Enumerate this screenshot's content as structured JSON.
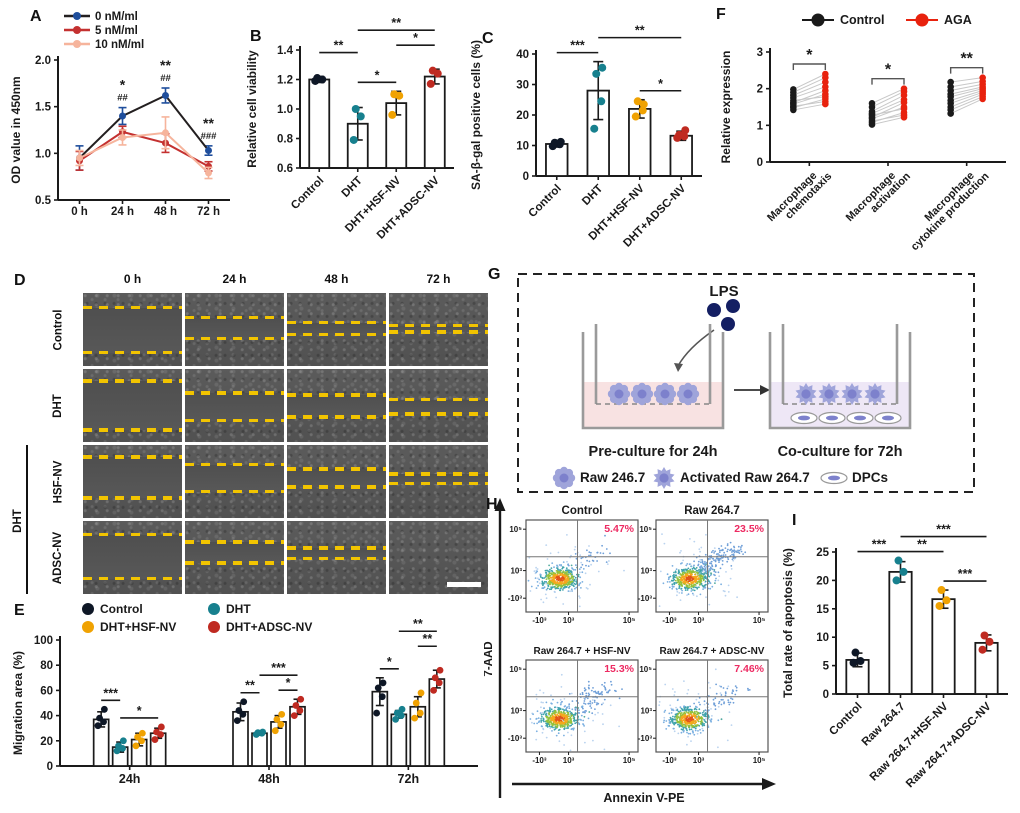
{
  "colors": {
    "control": "#0e1726",
    "dht_teal": "#17808e",
    "hsf_orange": "#f0a202",
    "adsc_red": "#bf2a21",
    "line_black": "#231f20",
    "marker_blue": "#1f4e9c",
    "red_5nm": "#c43130",
    "salmon_10nm": "#f6b49c",
    "aga_red": "#e8220e",
    "pct_pink": "#ed2a62",
    "dash_yellow": "#f2c400",
    "cell_purple": "#9fa4da",
    "cell_purple_dark": "#7d81cc",
    "lps_navy": "#141f63",
    "medium_pink": "#f8e2e2",
    "medium_purple": "#eee7f6"
  },
  "panels": {
    "A": {
      "letter": "A"
    },
    "B": {
      "letter": "B"
    },
    "C": {
      "letter": "C"
    },
    "D": {
      "letter": "D",
      "col_headers": [
        "0 h",
        "24 h",
        "48 h",
        "72 h"
      ],
      "row_labels": [
        "Control",
        "DHT",
        "HSF-NV",
        "ADSC-NV"
      ],
      "bracket_label": "DHT",
      "gaps": [
        [
          [
            20,
            82
          ],
          [
            34,
            63
          ],
          [
            41,
            57
          ],
          [
            45,
            54
          ]
        ],
        [
          [
            17,
            84
          ],
          [
            33,
            71
          ],
          [
            36,
            66
          ],
          [
            42,
            62
          ]
        ],
        [
          [
            17,
            73
          ],
          [
            27,
            64
          ],
          [
            33,
            58
          ],
          [
            40,
            53
          ]
        ],
        [
          [
            19,
            79
          ],
          [
            29,
            58
          ],
          [
            37,
            52
          ],
          null
        ]
      ],
      "scale_bar_cell": [
        3,
        3
      ]
    },
    "E": {
      "letter": "E"
    },
    "F": {
      "letter": "F"
    },
    "G": {
      "letter": "G",
      "lps_label": "LPS",
      "left_label": "Pre-culture for 24h",
      "right_label": "Co-culture for 72h",
      "legend": [
        {
          "label": "Raw 246.7",
          "icon": "raw-cell"
        },
        {
          "label": "Activated Raw 264.7",
          "icon": "activated-cell"
        },
        {
          "label": "DPCs",
          "icon": "dpc-cell"
        }
      ]
    },
    "H": {
      "letter": "H"
    },
    "I": {
      "letter": "I"
    }
  },
  "chart_data": [
    {
      "panel": "A",
      "type": "line",
      "ylabel": "OD value in 450nm",
      "ylim": [
        0.5,
        2.0
      ],
      "yticks": [
        0.5,
        1.0,
        1.5,
        2.0
      ],
      "ytick_labels": [
        "0.5",
        "1.0",
        "1.5",
        "2.0"
      ],
      "categories": [
        "0 h",
        "24 h",
        "48 h",
        "72 h"
      ],
      "series": [
        {
          "name": "0 nM/ml",
          "line_color": "#231f20",
          "marker_color": "#1f4e9c",
          "values": [
            0.95,
            1.4,
            1.62,
            1.03
          ],
          "errors": [
            0.13,
            0.09,
            0.08,
            0.05
          ]
        },
        {
          "name": "5 nM/ml",
          "line_color": "#c43130",
          "marker_color": "#c43130",
          "values": [
            0.92,
            1.23,
            1.11,
            0.86
          ],
          "errors": [
            0.1,
            0.06,
            0.1,
            0.05
          ]
        },
        {
          "name": "10 nM/ml",
          "line_color": "#f6b49c",
          "marker_color": "#f6b49c",
          "values": [
            0.95,
            1.17,
            1.22,
            0.79
          ],
          "errors": [
            0.08,
            0.08,
            0.17,
            0.06
          ]
        }
      ],
      "annotations": [
        {
          "x": 1,
          "lines": [
            "*",
            "##"
          ]
        },
        {
          "x": 2,
          "lines": [
            "**",
            "##"
          ]
        },
        {
          "x": 3,
          "lines": [
            "**",
            "###"
          ]
        }
      ]
    },
    {
      "panel": "B",
      "type": "bar",
      "ylabel": "Relative cell viability",
      "ylim": [
        0.6,
        1.4
      ],
      "yticks": [
        0.6,
        0.8,
        1.0,
        1.2,
        1.4
      ],
      "ytick_labels": [
        "0.6",
        "0.8",
        "1.0",
        "1.2",
        "1.4"
      ],
      "categories": [
        "Control",
        "DHT",
        "DHT+HSF-NV",
        "DHT+ADSC-NV"
      ],
      "values": [
        1.2,
        0.9,
        1.04,
        1.22
      ],
      "errors": [
        0.02,
        0.11,
        0.08,
        0.05
      ],
      "points": [
        [
          1.19,
          1.2,
          1.21
        ],
        [
          0.79,
          0.95,
          1.0
        ],
        [
          0.96,
          1.09,
          1.1
        ],
        [
          1.17,
          1.24,
          1.26
        ]
      ],
      "point_colors": [
        "#0e1726",
        "#17808e",
        "#f0a202",
        "#bf2a21"
      ],
      "sigs": [
        {
          "a": 0,
          "b": 1,
          "label": "**",
          "level": 1
        },
        {
          "a": 1,
          "b": 2,
          "label": "*",
          "level": 0
        },
        {
          "a": 2,
          "b": 3,
          "label": "*",
          "level": 1
        },
        {
          "a": 1,
          "b": 3,
          "label": "**",
          "level": 2
        }
      ]
    },
    {
      "panel": "C",
      "type": "bar",
      "ylabel": "SA-β-gal positive cells (%)",
      "ylim": [
        0,
        40
      ],
      "yticks": [
        0,
        10,
        20,
        30,
        40
      ],
      "ytick_labels": [
        "0",
        "10",
        "20",
        "30",
        "40"
      ],
      "categories": [
        "Control",
        "DHT",
        "DHT+HSF-NV",
        "DHT+ADSC-NV"
      ],
      "values": [
        10.5,
        28,
        22,
        13.2
      ],
      "errors": [
        1,
        9.5,
        3,
        1.5
      ],
      "points": [
        [
          9.8,
          10.4,
          10.9,
          11.2
        ],
        [
          15.5,
          24.5,
          33.5,
          35.5
        ],
        [
          19.5,
          21.5,
          24.5,
          23.5
        ],
        [
          12.5,
          13,
          13.5,
          15
        ]
      ],
      "point_colors": [
        "#0e1726",
        "#17808e",
        "#f0a202",
        "#bf2a21"
      ],
      "sigs": [
        {
          "a": 0,
          "b": 1,
          "label": "***",
          "level": 0
        },
        {
          "a": 2,
          "b": 3,
          "label": "*",
          "level": 0
        },
        {
          "a": 1,
          "b": 3,
          "label": "**",
          "level": 1
        }
      ]
    },
    {
      "panel": "E",
      "type": "grouped_bar",
      "ylabel": "Migration area (%)",
      "ylim": [
        0,
        100
      ],
      "yticks": [
        0,
        20,
        40,
        60,
        80,
        100
      ],
      "ytick_labels": [
        "0",
        "20",
        "40",
        "60",
        "80",
        "100"
      ],
      "groups": [
        "24h",
        "48h",
        "72h"
      ],
      "legend": [
        {
          "name": "Control",
          "color": "#0e1726"
        },
        {
          "name": "DHT",
          "color": "#17808e"
        },
        {
          "name": "DHT+HSF-NV",
          "color": "#f0a202"
        },
        {
          "name": "DHT+ADSC-NV",
          "color": "#bf2a21"
        }
      ],
      "values": [
        [
          37,
          15,
          21,
          26
        ],
        [
          43,
          26,
          35,
          47
        ],
        [
          59,
          41,
          47,
          69
        ]
      ],
      "errors": [
        [
          6,
          4,
          5,
          4
        ],
        [
          7,
          1.5,
          5,
          6
        ],
        [
          11,
          3,
          8,
          7
        ]
      ],
      "points": [
        [
          [
            32,
            35,
            38,
            45
          ],
          [
            12,
            14,
            16,
            20
          ],
          [
            16,
            20,
            23,
            26
          ],
          [
            21,
            25,
            27,
            31
          ]
        ],
        [
          [
            36,
            41,
            44,
            51
          ],
          [
            25,
            26,
            26.5,
            27
          ],
          [
            28,
            33,
            37,
            41
          ],
          [
            40,
            44,
            48,
            53
          ]
        ],
        [
          [
            42,
            55,
            62,
            66
          ],
          [
            37,
            40,
            42,
            45
          ],
          [
            38,
            42,
            50,
            58
          ],
          [
            60,
            66,
            70,
            76
          ]
        ]
      ],
      "sigs": [
        {
          "a": 0,
          "b": 1,
          "label": "***",
          "level": 0
        },
        {
          "a": 1,
          "b": 3,
          "label": "*",
          "level": 0
        },
        {
          "a": 4,
          "b": 5,
          "label": "**",
          "level": 0
        },
        {
          "a": 5,
          "b": 7,
          "label": "***",
          "level": 1
        },
        {
          "a": 6,
          "b": 7,
          "label": "*",
          "level": 0
        },
        {
          "a": 8,
          "b": 9,
          "label": "*",
          "level": 0
        },
        {
          "a": 9,
          "b": 11,
          "label": "**",
          "level": 2
        },
        {
          "a": 10,
          "b": 11,
          "label": "**",
          "level": 1
        }
      ]
    },
    {
      "panel": "F",
      "type": "paired_dots",
      "ylabel": "Relative expression",
      "ylim": [
        0,
        3
      ],
      "yticks": [
        0,
        1,
        2,
        3
      ],
      "ytick_labels": [
        "0",
        "1",
        "2",
        "3"
      ],
      "legend": [
        {
          "name": "Control",
          "color": "#1a1a1a"
        },
        {
          "name": "AGA",
          "color": "#e8220e"
        }
      ],
      "categories": [
        [
          "Macrophage",
          "chemotaxis"
        ],
        [
          "Macrophage",
          "activation"
        ],
        [
          "Macrophage",
          "cytokine production"
        ]
      ],
      "control": [
        [
          1.42,
          1.48,
          1.52,
          1.58,
          1.62,
          1.68,
          1.75,
          1.82,
          1.9,
          1.98
        ],
        [
          1.02,
          1.08,
          1.12,
          1.18,
          1.22,
          1.28,
          1.32,
          1.38,
          1.5,
          1.6
        ],
        [
          1.32,
          1.42,
          1.5,
          1.6,
          1.68,
          1.78,
          1.85,
          1.95,
          2.05,
          2.18
        ]
      ],
      "aga": [
        [
          1.58,
          1.72,
          1.65,
          1.85,
          1.95,
          1.78,
          2.05,
          2.18,
          2.3,
          2.4
        ],
        [
          1.22,
          1.35,
          1.28,
          1.5,
          1.62,
          1.45,
          1.7,
          1.82,
          1.92,
          2.0
        ],
        [
          1.72,
          1.78,
          1.85,
          1.9,
          1.95,
          2.0,
          2.05,
          2.12,
          2.2,
          2.3
        ]
      ],
      "sigs": [
        "*",
        "*",
        "**"
      ]
    },
    {
      "panel": "H",
      "type": "flow_set",
      "ylabel": "7-AAD",
      "xlabel": "Annexin V-PE",
      "ytick_labels": [
        "10⁵",
        "10³",
        "-10³"
      ],
      "xtick_labels": [
        "-10³",
        "10³",
        "10⁵"
      ],
      "plots": [
        {
          "title": "Control",
          "pct": "5.47%",
          "tail": 0.1
        },
        {
          "title": "Raw 264.7",
          "pct": "23.5%",
          "tail": 0.42
        },
        {
          "title": "Raw 264.7 + HSF-NV",
          "pct": "15.3%",
          "tail": 0.28
        },
        {
          "title": "Raw 264.7 + ADSC-NV",
          "pct": "7.46%",
          "tail": 0.14
        }
      ]
    },
    {
      "panel": "I",
      "type": "bar",
      "ylabel": "Total rate of apoptosis (%)",
      "ylim": [
        0,
        25
      ],
      "yticks": [
        0,
        5,
        10,
        15,
        20,
        25
      ],
      "ytick_labels": [
        "0",
        "5",
        "10",
        "15",
        "20",
        "25"
      ],
      "categories": [
        "Control",
        "Raw 264.7",
        "Raw 264.7+HSF-NV",
        "Raw 264.7+ADSC-NV"
      ],
      "values": [
        6,
        21.5,
        16.7,
        9
      ],
      "errors": [
        1.2,
        1.8,
        1.6,
        1.4
      ],
      "points": [
        [
          5.5,
          5.8,
          7.3
        ],
        [
          20,
          21.5,
          23.5
        ],
        [
          15.5,
          16.5,
          18.3
        ],
        [
          7.8,
          9.2,
          10.3
        ]
      ],
      "point_colors": [
        "#0e1726",
        "#17808e",
        "#f0a202",
        "#bf2a21"
      ],
      "sigs": [
        {
          "a": 0,
          "b": 1,
          "label": "***",
          "level": 0
        },
        {
          "a": 1,
          "b": 2,
          "label": "**",
          "level": 0
        },
        {
          "a": 2,
          "b": 3,
          "label": "***",
          "level": 0
        },
        {
          "a": 1,
          "b": 3,
          "label": "***",
          "level": 1
        }
      ]
    }
  ]
}
